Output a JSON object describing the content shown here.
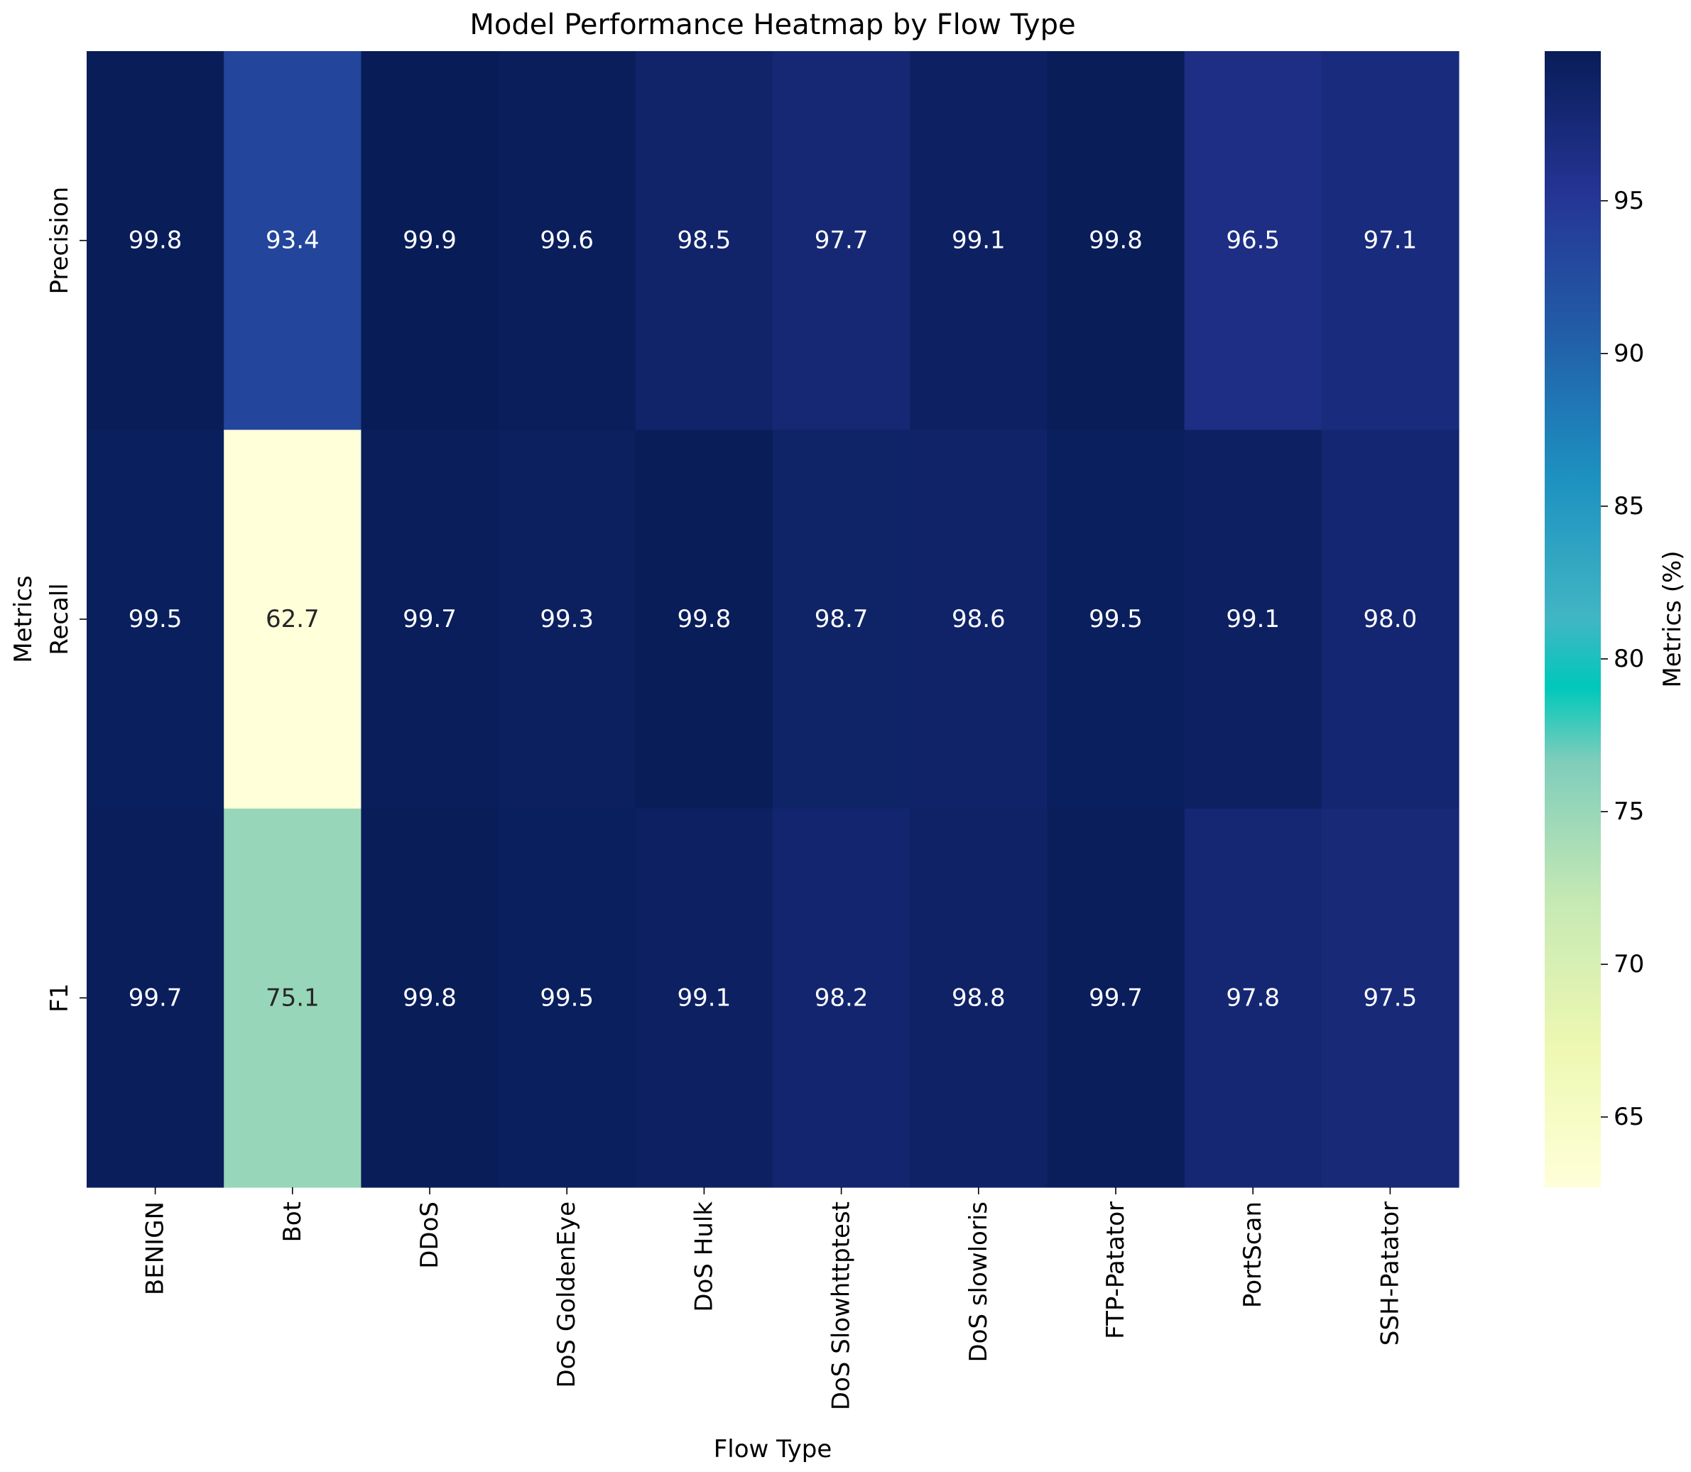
{
  "chart_data": {
    "type": "heatmap",
    "title": "Model Performance Heatmap by Flow Type",
    "xlabel": "Flow Type",
    "ylabel": "Metrics",
    "colorbar_label": "Metrics (%)",
    "colormap": "YlGnBu",
    "vmin": 62.7,
    "vmax": 99.9,
    "colorbar_ticks": [
      65,
      70,
      75,
      80,
      85,
      90,
      95
    ],
    "colorbar_tick_labels": [
      "65",
      "70",
      "75",
      "80",
      "85",
      "90",
      "95"
    ],
    "rows": [
      "Precision",
      "Recall",
      "F1"
    ],
    "columns": [
      "BENIGN",
      "Bot",
      "DDoS",
      "DoS GoldenEye",
      "DoS Hulk",
      "DoS Slowhttptest",
      "DoS slowloris",
      "FTP-Patator",
      "PortScan",
      "SSH-Patator"
    ],
    "values": [
      [
        99.8,
        93.4,
        99.9,
        99.6,
        98.5,
        97.7,
        99.1,
        99.8,
        96.5,
        97.1
      ],
      [
        99.5,
        62.7,
        99.7,
        99.3,
        99.8,
        98.7,
        98.6,
        99.5,
        99.1,
        98.0
      ],
      [
        99.7,
        75.1,
        99.8,
        99.5,
        99.1,
        98.2,
        98.8,
        99.7,
        97.8,
        97.5
      ]
    ],
    "cell_labels": [
      [
        "99.8",
        "93.4",
        "99.9",
        "99.6",
        "98.5",
        "97.7",
        "99.1",
        "99.8",
        "96.5",
        "97.1"
      ],
      [
        "99.5",
        "62.7",
        "99.7",
        "99.3",
        "99.8",
        "98.7",
        "98.6",
        "99.5",
        "99.1",
        "98.0"
      ],
      [
        "99.7",
        "75.1",
        "99.8",
        "99.5",
        "99.1",
        "98.2",
        "98.8",
        "99.7",
        "97.8",
        "97.5"
      ]
    ],
    "grid": false
  }
}
